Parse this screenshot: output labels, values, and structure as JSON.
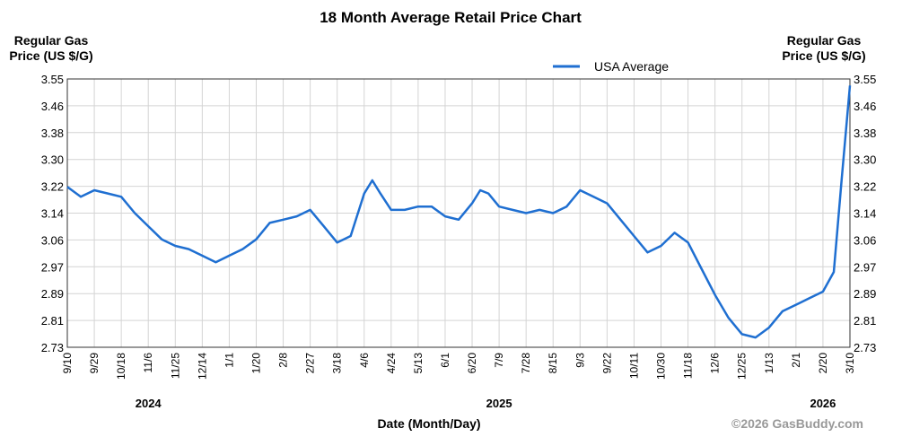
{
  "chart_data": {
    "type": "line",
    "title": "18 Month Average Retail Price Chart",
    "ylabel_left": [
      "Regular Gas",
      "Price (US $/G)"
    ],
    "ylabel_right": [
      "Regular Gas",
      "Price (US $/G)"
    ],
    "xlabel": "Date (Month/Day)",
    "ylim": [
      2.73,
      3.55
    ],
    "yticks": [
      "3.55",
      "3.46",
      "3.38",
      "3.30",
      "3.22",
      "3.14",
      "3.06",
      "2.97",
      "2.89",
      "2.81",
      "2.73"
    ],
    "xticks": [
      "9/10",
      "9/29",
      "10/18",
      "11/6",
      "11/25",
      "12/14",
      "1/1",
      "1/20",
      "2/8",
      "2/27",
      "3/18",
      "4/6",
      "4/24",
      "5/13",
      "6/1",
      "6/20",
      "7/9",
      "7/28",
      "8/15",
      "9/3",
      "9/22",
      "10/11",
      "10/30",
      "11/18",
      "12/6",
      "12/25",
      "1/13",
      "2/1",
      "2/20",
      "3/10"
    ],
    "years": [
      {
        "label": "2024",
        "tick_index": 3
      },
      {
        "label": "2025",
        "tick_index": 16
      },
      {
        "label": "2026",
        "tick_index": 28
      }
    ],
    "legend": [
      {
        "name": "USA Average",
        "color": "#1f6fd1"
      }
    ],
    "legend_position": "top-center",
    "grid": true,
    "series": [
      {
        "name": "USA Average",
        "color": "#1f6fd1",
        "x_tick_positions": [
          0,
          0.5,
          1,
          1.5,
          2,
          2.5,
          3,
          3.5,
          4,
          4.5,
          5,
          5.5,
          6,
          6.5,
          7,
          7.5,
          8,
          8.5,
          9,
          9.5,
          10,
          10.5,
          11,
          11.3,
          11.6,
          12,
          12.5,
          13,
          13.5,
          14,
          14.5,
          15,
          15.3,
          15.6,
          16,
          16.5,
          17,
          17.5,
          18,
          18.5,
          19,
          19.5,
          20,
          20.5,
          21,
          21.5,
          22,
          22.5,
          23,
          23.5,
          24,
          24.5,
          25,
          25.5,
          26,
          26.5,
          27,
          27.5,
          28,
          28.4,
          28.7,
          29.0
        ],
        "values": [
          3.22,
          3.19,
          3.21,
          3.2,
          3.19,
          3.14,
          3.1,
          3.06,
          3.04,
          3.03,
          3.01,
          2.99,
          3.01,
          3.03,
          3.06,
          3.11,
          3.12,
          3.13,
          3.15,
          3.1,
          3.05,
          3.07,
          3.2,
          3.24,
          3.2,
          3.15,
          3.15,
          3.16,
          3.16,
          3.13,
          3.12,
          3.17,
          3.21,
          3.2,
          3.16,
          3.15,
          3.14,
          3.15,
          3.14,
          3.16,
          3.21,
          3.19,
          3.17,
          3.12,
          3.07,
          3.02,
          3.04,
          3.08,
          3.05,
          2.97,
          2.89,
          2.82,
          2.77,
          2.76,
          2.79,
          2.84,
          2.86,
          2.88,
          2.9,
          2.96,
          3.25,
          3.53
        ]
      }
    ]
  },
  "copyright": "©2026 GasBuddy.com"
}
